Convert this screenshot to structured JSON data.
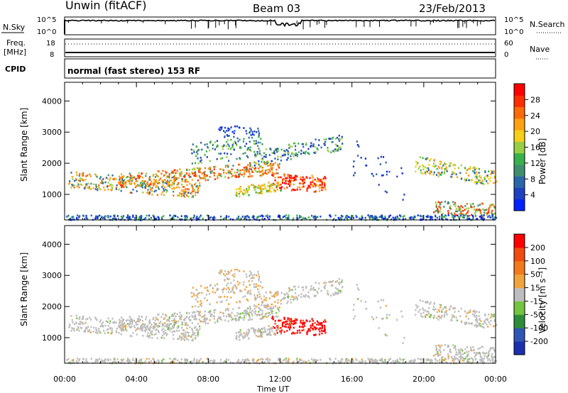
{
  "header": {
    "station": "Unwin (fitACF)",
    "beam": "Beam 03",
    "date": "23/Feb/2013"
  },
  "top_panels": {
    "nsky_label": "N.Sky",
    "nsearch_label": "N.Search",
    "nsky_ticks": [
      "10^5",
      "10^0"
    ],
    "nsearch_ticks": [
      "10^5",
      "10^0"
    ],
    "freq_label_1": "Freq.",
    "freq_label_2": "[MHz]",
    "freq_ticks": [
      "18",
      "8"
    ],
    "nave_label": "Nave",
    "nave_ticks": [
      "60",
      "0"
    ],
    "cpid_label": "CPID",
    "cpid_text": "normal (fast stereo) 153 RF"
  },
  "chart_data": [
    {
      "type": "heatmap",
      "title": "",
      "ylabel": "Slant Range [km]",
      "xlabel": "",
      "x_ticks": [
        "00:00",
        "04:00",
        "08:00",
        "12:00",
        "16:00",
        "20:00",
        "00:00"
      ],
      "x_range_hours": [
        0,
        24
      ],
      "y_ticks": [
        1000,
        2000,
        3000,
        4000
      ],
      "ylim": [
        180,
        4600
      ],
      "colorbar": {
        "label": "Power [dB]",
        "ticks": [
          "28",
          "24",
          "20",
          "16",
          "12",
          "8",
          "4"
        ],
        "colors": [
          "#0022ff",
          "#1f40c0",
          "#2a66a8",
          "#3f8f6f",
          "#38b14a",
          "#98cf42",
          "#f5cf18",
          "#ffa010",
          "#ff6a08",
          "#ff2e00",
          "#ff0000"
        ]
      }
    },
    {
      "type": "heatmap",
      "title": "",
      "ylabel": "Slant Range [km]",
      "xlabel": "Time UT",
      "x_ticks": [
        "00:00",
        "04:00",
        "08:00",
        "12:00",
        "16:00",
        "20:00",
        "00:00"
      ],
      "x_range_hours": [
        0,
        24
      ],
      "y_ticks": [
        1000,
        2000,
        3000,
        4000
      ],
      "ylim": [
        180,
        4600
      ],
      "colorbar": {
        "label": "Velocity [m s⁻¹]",
        "ticks": [
          "200",
          "100",
          "50",
          "15",
          "-15",
          "-50",
          "-100",
          "-200"
        ],
        "colors": [
          "#1a2fb0",
          "#2f55b5",
          "#2d8c3a",
          "#74c440",
          "#bdbdbd",
          "#f2a43c",
          "#f37a1a",
          "#f24b10",
          "#ff0000"
        ]
      }
    }
  ]
}
